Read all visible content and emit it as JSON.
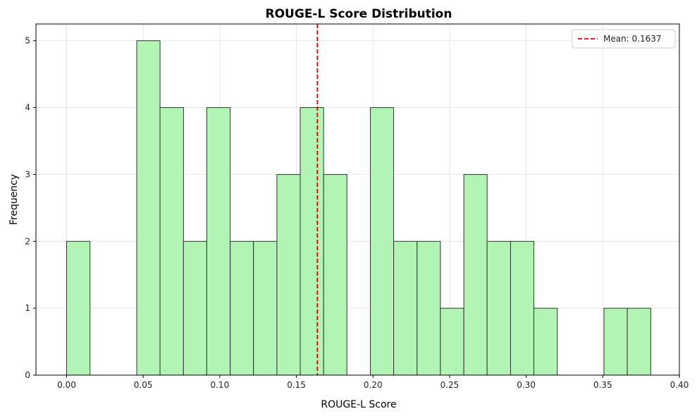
{
  "chart_data": {
    "type": "bar",
    "title": "ROUGE-L Score Distribution",
    "xlabel": "ROUGE-L Score",
    "ylabel": "Frequency",
    "xlim": [
      -0.02,
      0.4
    ],
    "ylim": [
      0,
      5.25
    ],
    "xticks": [
      "0.00",
      "0.05",
      "0.10",
      "0.15",
      "0.20",
      "0.25",
      "0.30",
      "0.35",
      "0.40"
    ],
    "xtick_values": [
      0.0,
      0.05,
      0.1,
      0.15,
      0.2,
      0.25,
      0.3,
      0.35,
      0.4
    ],
    "yticks": [
      "0",
      "1",
      "2",
      "3",
      "4",
      "5"
    ],
    "ytick_values": [
      0,
      1,
      2,
      3,
      4,
      5
    ],
    "bins": [
      {
        "start": 0.0,
        "end": 0.0153,
        "count": 2
      },
      {
        "start": 0.0458,
        "end": 0.061,
        "count": 5
      },
      {
        "start": 0.061,
        "end": 0.0763,
        "count": 4
      },
      {
        "start": 0.0763,
        "end": 0.0915,
        "count": 2
      },
      {
        "start": 0.0915,
        "end": 0.1068,
        "count": 4
      },
      {
        "start": 0.1068,
        "end": 0.122,
        "count": 2
      },
      {
        "start": 0.122,
        "end": 0.1373,
        "count": 2
      },
      {
        "start": 0.1373,
        "end": 0.1525,
        "count": 3
      },
      {
        "start": 0.1525,
        "end": 0.1678,
        "count": 4
      },
      {
        "start": 0.1678,
        "end": 0.183,
        "count": 3
      },
      {
        "start": 0.1983,
        "end": 0.2135,
        "count": 4
      },
      {
        "start": 0.2135,
        "end": 0.2288,
        "count": 2
      },
      {
        "start": 0.2288,
        "end": 0.244,
        "count": 2
      },
      {
        "start": 0.244,
        "end": 0.2593,
        "count": 1
      },
      {
        "start": 0.2593,
        "end": 0.2745,
        "count": 3
      },
      {
        "start": 0.2745,
        "end": 0.2898,
        "count": 2
      },
      {
        "start": 0.2898,
        "end": 0.305,
        "count": 2
      },
      {
        "start": 0.305,
        "end": 0.3203,
        "count": 1
      },
      {
        "start": 0.3508,
        "end": 0.366,
        "count": 1
      },
      {
        "start": 0.366,
        "end": 0.3813,
        "count": 1
      }
    ],
    "mean_line": {
      "value": 0.1637,
      "label": "Mean: 0.1637",
      "color": "#e00000",
      "style": "dashed"
    },
    "bar_color": "#b1f4b4",
    "bar_edge_color": "#333333",
    "grid": true,
    "legend_position": "top-right"
  }
}
